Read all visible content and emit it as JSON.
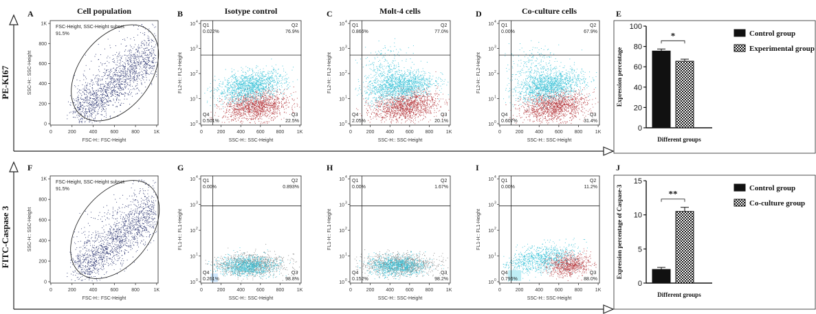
{
  "row_labels": {
    "top": "PE-KI67",
    "bottom": "FITC-Caspase 3"
  },
  "colors": {
    "navy": "#2c3570",
    "cyan": "#3cc3d8",
    "red": "#b63d42",
    "gray": "#8a8a8a",
    "black": "#111111",
    "axis": "#222222"
  },
  "chart_data": [
    {
      "panel": "A",
      "type": "scatter",
      "title": "Cell population",
      "xlabel": "FSC-H:: FSC-Height",
      "ylabel": "SSC-H:: SSC-Height",
      "x_ticks": [
        "0",
        "200",
        "400",
        "600",
        "800",
        "1K"
      ],
      "y_ticks": [
        "0",
        "200",
        "400",
        "600",
        "800",
        "1K"
      ],
      "xlim": [
        0,
        1000
      ],
      "ylim": [
        0,
        1000
      ],
      "gate_label": "FSC-Height, SSC-Height subset",
      "gate_value": "91.5%"
    },
    {
      "panel": "B",
      "type": "scatter",
      "title": "Isotype control",
      "xlabel": "SSC-H:: SSC-Height",
      "ylabel": "FL2-H:: FL2-Height",
      "x_ticks": [
        "0",
        "200",
        "400",
        "600",
        "800",
        "1K"
      ],
      "y_exponents": [
        "0",
        "1",
        "2",
        "3",
        "4"
      ],
      "y_base": "10",
      "quadrants": {
        "Q1": "0.022%",
        "Q2": "76.9%",
        "Q3": "22.5%",
        "Q4": "0.501%"
      },
      "quadrant_names": [
        "Q1",
        "Q2",
        "Q3",
        "Q4"
      ]
    },
    {
      "panel": "C",
      "type": "scatter",
      "title": "Molt-4 cells",
      "xlabel": "SSC-H:: SSC-Height",
      "ylabel": "FL2-H:: FL2-Height",
      "x_ticks": [
        "0",
        "200",
        "400",
        "600",
        "800",
        "1K"
      ],
      "y_exponents": [
        "0",
        "1",
        "2",
        "3",
        "4"
      ],
      "y_base": "10",
      "quadrants": {
        "Q1": "0.866%",
        "Q2": "77.0%",
        "Q3": "20.1%",
        "Q4": "2.05%"
      },
      "quadrant_names": [
        "Q1",
        "Q2",
        "Q3",
        "Q4"
      ]
    },
    {
      "panel": "D",
      "type": "scatter",
      "title": "Co-culture cells",
      "xlabel": "SSC-H:: SSC-Height",
      "ylabel": "FL2-H:: FL2-Height",
      "x_ticks": [
        "0",
        "200",
        "400",
        "600",
        "800",
        "1K"
      ],
      "y_exponents": [
        "0",
        "1",
        "2",
        "3",
        "4"
      ],
      "y_base": "10",
      "quadrants": {
        "Q1": "0.00%",
        "Q2": "67.9%",
        "Q3": "31.4%",
        "Q4": "0.607%"
      },
      "quadrant_names": [
        "Q1",
        "Q2",
        "Q3",
        "Q4"
      ]
    },
    {
      "panel": "E",
      "type": "bar",
      "categories": [
        "Control group",
        "Experimental group"
      ],
      "values": [
        75.5,
        65.5
      ],
      "errors": [
        2,
        2
      ],
      "ylim": [
        0,
        100
      ],
      "y_ticks": [
        "0",
        "20",
        "40",
        "60",
        "80",
        "100"
      ],
      "ylabel": "Expression percentage",
      "xlabel": "Different groups",
      "significance": "*",
      "legend": "right"
    },
    {
      "panel": "F",
      "type": "scatter",
      "title": "",
      "xlabel": "FSC-H:: FSC-Height",
      "ylabel": "SSC-H:: SSC-Height",
      "x_ticks": [
        "0",
        "200",
        "400",
        "600",
        "800",
        "1K"
      ],
      "y_ticks": [
        "0",
        "200",
        "400",
        "600",
        "800",
        "1K"
      ],
      "xlim": [
        0,
        1000
      ],
      "ylim": [
        0,
        1000
      ],
      "gate_label": "FSC-Height, SSC-Height subset",
      "gate_value": "91.5%"
    },
    {
      "panel": "G",
      "type": "scatter",
      "title": "",
      "xlabel": "SSC-H:: SSC-Height",
      "ylabel": "FL1-H:: FL1-Height",
      "x_ticks": [
        "0",
        "200",
        "400",
        "600",
        "800",
        "1K"
      ],
      "y_exponents": [
        "0",
        "1",
        "2",
        "3",
        "4"
      ],
      "y_base": "10",
      "quadrants": {
        "Q1": "0.00%",
        "Q2": "0.893%",
        "Q3": "98.8%",
        "Q4": "0.261%"
      },
      "quadrant_names": [
        "Q1",
        "Q2",
        "Q3",
        "Q4"
      ]
    },
    {
      "panel": "H",
      "type": "scatter",
      "title": "",
      "xlabel": "SSC-H:: SSC-Height",
      "ylabel": "FL1-H:: FL1-Height",
      "x_ticks": [
        "0",
        "200",
        "400",
        "600",
        "800",
        "1K"
      ],
      "y_exponents": [
        "0",
        "1",
        "2",
        "3",
        "4"
      ],
      "y_base": "10",
      "quadrants": {
        "Q1": "0.00%",
        "Q2": "1.67%",
        "Q3": "98.2%",
        "Q4": "0.152%"
      },
      "quadrant_names": [
        "Q1",
        "Q2",
        "Q3",
        "Q4"
      ]
    },
    {
      "panel": "I",
      "type": "scatter",
      "title": "",
      "xlabel": "SSC-H:: SSC-Height",
      "ylabel": "FL1-H:: FL1-Height",
      "x_ticks": [
        "0",
        "200",
        "400",
        "600",
        "800",
        "1K"
      ],
      "y_exponents": [
        "0",
        "1",
        "2",
        "3",
        "4"
      ],
      "y_base": "10",
      "quadrants": {
        "Q1": "0.00%",
        "Q2": "11.2%",
        "Q3": "88.0%",
        "Q4": "0.796%"
      },
      "quadrant_names": [
        "Q1",
        "Q2",
        "Q3",
        "Q4"
      ]
    },
    {
      "panel": "J",
      "type": "bar",
      "categories": [
        "Control group",
        "Co-culture group"
      ],
      "values": [
        2.0,
        10.5
      ],
      "errors": [
        0.3,
        0.6
      ],
      "ylim": [
        0,
        15
      ],
      "y_ticks": [
        "0",
        "5",
        "10",
        "15"
      ],
      "ylabel": "Expression percentage of Caspase-3",
      "xlabel": "Different groups",
      "significance": "**",
      "legend": "right"
    }
  ]
}
